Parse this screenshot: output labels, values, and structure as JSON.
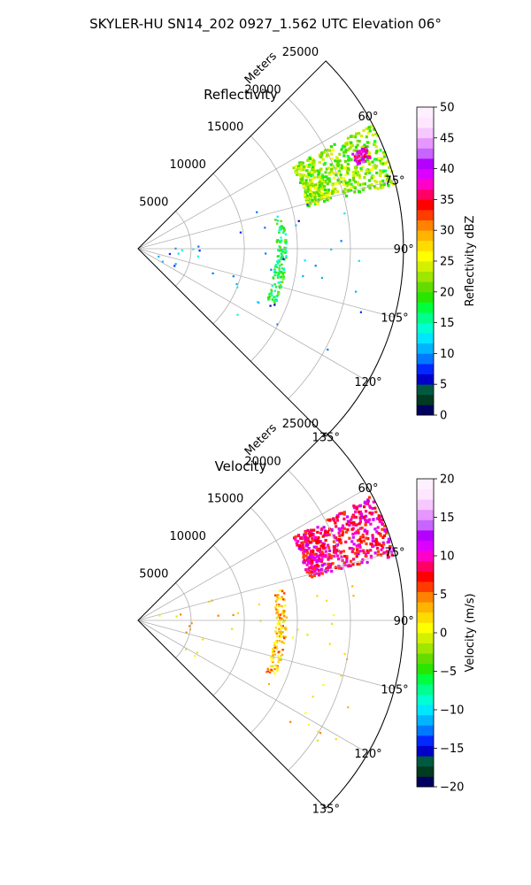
{
  "figure": {
    "title": "SKYLER-HU  SN14_202  0927_1.562 UTC Elevation 06°"
  },
  "chart_data": [
    {
      "type": "polar-sector",
      "title": "Reflectivity",
      "range_axis": {
        "label": "Meters",
        "ticks": [
          5000,
          10000,
          15000,
          20000,
          25000
        ],
        "tick_labels": [
          "5000",
          "10000",
          "15000",
          "20000",
          "25000"
        ],
        "range": [
          0,
          25000
        ]
      },
      "azimuth_axis": {
        "ticks": [
          60,
          75,
          90,
          105,
          120,
          135
        ],
        "tick_labels": [
          "60°",
          "75°",
          "90°",
          "105°",
          "120°",
          "135°"
        ],
        "range": [
          45,
          135
        ]
      },
      "grid": true,
      "colorbar": {
        "label": "Reflectivity dBZ",
        "ticks": [
          0,
          5,
          10,
          15,
          20,
          25,
          30,
          35,
          40,
          45,
          50
        ],
        "tick_labels": [
          "0",
          "5",
          "10",
          "15",
          "20",
          "25",
          "30",
          "35",
          "40",
          "45",
          "50"
        ],
        "range": [
          0,
          50
        ],
        "colors": [
          "#000060",
          "#003a20",
          "#005a40",
          "#0000c8",
          "#0028ff",
          "#0078ff",
          "#00b4ff",
          "#00e6ff",
          "#00ffd2",
          "#00ff8c",
          "#00ff3c",
          "#28e600",
          "#64dc00",
          "#a0e600",
          "#d2f000",
          "#ffff00",
          "#ffdc00",
          "#ffb400",
          "#ff8200",
          "#ff3c00",
          "#ff0000",
          "#ff0064",
          "#ff00c8",
          "#dc00ff",
          "#b400ff",
          "#c864ff",
          "#e696ff",
          "#f5c8ff",
          "#ffe6ff",
          "#fff0ff"
        ]
      },
      "echoes": [
        {
          "region": "band",
          "az": [
            62,
            76
          ],
          "range": [
            18500,
            25000
          ],
          "value_dbz": 22
        },
        {
          "region": "core",
          "az": [
            66,
            69
          ],
          "range": [
            22000,
            23500
          ],
          "value_dbz": 38
        },
        {
          "region": "arc",
          "az": [
            78,
            112
          ],
          "range": [
            13000,
            14000
          ],
          "value_dbz": 18
        },
        {
          "region": "scatter",
          "az": [
            72,
            125
          ],
          "range": [
            2000,
            22000
          ],
          "value_dbz": 10
        }
      ]
    },
    {
      "type": "polar-sector",
      "title": "Velocity",
      "range_axis": {
        "label": "Meters",
        "ticks": [
          5000,
          10000,
          15000,
          20000,
          25000
        ],
        "tick_labels": [
          "5000",
          "10000",
          "15000",
          "20000",
          "25000"
        ],
        "range": [
          0,
          25000
        ]
      },
      "azimuth_axis": {
        "ticks": [
          60,
          75,
          90,
          105,
          120,
          135
        ],
        "tick_labels": [
          "60°",
          "75°",
          "90°",
          "105°",
          "120°",
          "135°"
        ],
        "range": [
          45,
          135
        ]
      },
      "grid": true,
      "colorbar": {
        "label": "Velocity (m/s)",
        "ticks": [
          -20,
          -15,
          -10,
          -5,
          0,
          5,
          10,
          15,
          20
        ],
        "tick_labels": [
          "−20",
          "−15",
          "−10",
          "−5",
          "0",
          "5",
          "10",
          "15",
          "20"
        ],
        "range": [
          -20,
          20
        ],
        "colors": [
          "#000060",
          "#003a20",
          "#005a40",
          "#0000c8",
          "#0028ff",
          "#0078ff",
          "#00b4ff",
          "#00e6ff",
          "#00ffd2",
          "#00ff8c",
          "#00ff3c",
          "#28e600",
          "#64dc00",
          "#a0e600",
          "#d2f000",
          "#ffff00",
          "#ffdc00",
          "#ffb400",
          "#ff8200",
          "#ff3c00",
          "#ff0000",
          "#ff0064",
          "#ff00c8",
          "#dc00ff",
          "#b400ff",
          "#c864ff",
          "#e696ff",
          "#f5c8ff",
          "#ffe6ff",
          "#fff0ff"
        ]
      },
      "echoes": [
        {
          "region": "band",
          "az": [
            62,
            76
          ],
          "range": [
            18500,
            25000
          ],
          "value_ms": 9
        },
        {
          "region": "arc",
          "az": [
            78,
            112
          ],
          "range": [
            13000,
            14000
          ],
          "value_ms": 3
        },
        {
          "region": "scatter",
          "az": [
            72,
            125
          ],
          "range": [
            2000,
            22000
          ],
          "value_ms": 2
        }
      ]
    }
  ]
}
